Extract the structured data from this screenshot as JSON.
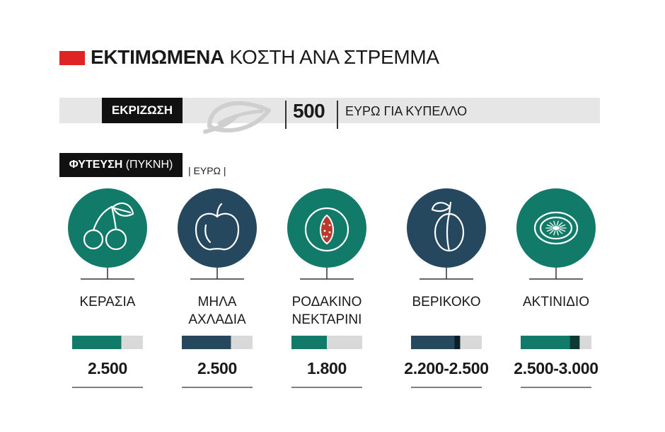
{
  "header": {
    "title_bold": "ΕΚΤΙΜΩΜΕΝΑ",
    "title_light": "ΚΟΣΤΗ ΑΝΑ ΣΤΡΕΜΜΑ"
  },
  "ekrizosi": {
    "label": "ΕΚΡΙΖΩΣΗ",
    "value": "500",
    "unit": "ΕΥΡΩ ΓΙΑ ΚΥΠΕΛΛΟ",
    "icon": "leaf-icon"
  },
  "fyteusi": {
    "label_bold": "ΦΥΤΕΥΣΗ",
    "label_light": "(ΠΥΚΝΗ)",
    "unit": "| ΕΥΡΩ |"
  },
  "colors": {
    "green": "#127a68",
    "navy": "#26485f",
    "dark_green": "#0d3b32",
    "dark_navy": "#0b1e2c",
    "track": "#d9d9d9",
    "accent_red": "#e02424"
  },
  "chart_data": {
    "type": "bar",
    "categories": [
      "ΚΕΡΑΣΙΑ",
      "ΜΗΛΑ ΑΧΛΑΔΙΑ",
      "ΡΟΔΑΚΙΝΟ ΝΕΚΤΑΡΙΝΙ",
      "ΒΕΡΙΚΟΚΟ",
      "ΑΚΤΙΝΙΔΙΟ"
    ],
    "category_lines": [
      [
        "ΚΕΡΑΣΙΑ"
      ],
      [
        "ΜΗΛΑ",
        "ΑΧΛΑΔΙΑ"
      ],
      [
        "ΡΟΔΑΚΙΝΟ",
        "ΝΕΚΤΑΡΙΝΙ"
      ],
      [
        "ΒΕΡΙΚΟΚΟ"
      ],
      [
        "ΑΚΤΙΝΙΔΙΟ"
      ]
    ],
    "icons": [
      "cherry-icon",
      "apple-icon",
      "peach-icon",
      "apricot-icon",
      "kiwi-icon"
    ],
    "circle_colors": [
      "green",
      "navy",
      "green",
      "navy",
      "green"
    ],
    "values_min": [
      2500,
      2500,
      1800,
      2200,
      2500
    ],
    "values_max": [
      2500,
      2500,
      1800,
      2500,
      3000
    ],
    "value_labels": [
      "2.500",
      "2.500",
      "1.800",
      "2.200-2.500",
      "2.500-3.000"
    ],
    "ylim": [
      0,
      3600
    ],
    "title": "",
    "xlabel": "",
    "ylabel": ""
  }
}
